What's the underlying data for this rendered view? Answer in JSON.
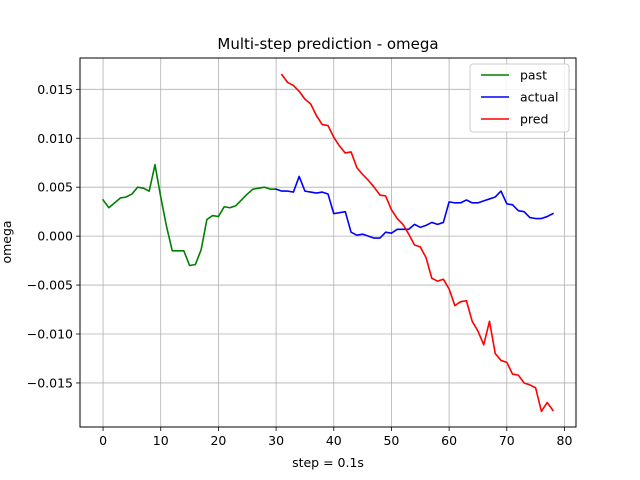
{
  "chart_data": {
    "type": "line",
    "title": "Multi-step prediction - omega",
    "xlabel": "step = 0.1s",
    "ylabel": "omega",
    "xlim": [
      -4,
      82
    ],
    "ylim": [
      -0.0195,
      0.0182
    ],
    "xticks": [
      0,
      10,
      20,
      30,
      40,
      50,
      60,
      70,
      80
    ],
    "yticks": [
      -0.015,
      -0.01,
      -0.005,
      0.0,
      0.005,
      0.01,
      0.015
    ],
    "ytick_labels": [
      "−0.015",
      "−0.010",
      "−0.005",
      "0.000",
      "0.005",
      "0.010",
      "0.015"
    ],
    "grid": true,
    "legend_position": "top-right",
    "series": [
      {
        "name": "past",
        "color": "#008000",
        "x": [
          0,
          1,
          2,
          3,
          4,
          5,
          6,
          7,
          8,
          9,
          10,
          11,
          12,
          13,
          14,
          15,
          16,
          17,
          18,
          19,
          20,
          21,
          22,
          23,
          24,
          25,
          26,
          27,
          28,
          29,
          30
        ],
        "y": [
          0.0037,
          0.0029,
          0.0034,
          0.0039,
          0.004,
          0.0043,
          0.005,
          0.0049,
          0.0046,
          0.0073,
          0.004,
          0.001,
          -0.0015,
          -0.0015,
          -0.0015,
          -0.003,
          -0.0029,
          -0.0014,
          0.0017,
          0.0021,
          0.002,
          0.003,
          0.0029,
          0.0031,
          0.0037,
          0.0043,
          0.0048,
          0.0049,
          0.005,
          0.0048,
          0.0048
        ]
      },
      {
        "name": "actual",
        "color": "#0000ff",
        "x": [
          30,
          31,
          32,
          33,
          34,
          35,
          36,
          37,
          38,
          39,
          40,
          41,
          42,
          43,
          44,
          45,
          46,
          47,
          48,
          49,
          50,
          51,
          52,
          53,
          54,
          55,
          56,
          57,
          58,
          59,
          60,
          61,
          62,
          63,
          64,
          65,
          66,
          67,
          68,
          69,
          70,
          71,
          72,
          73,
          74,
          75,
          76,
          77,
          78
        ],
        "y": [
          0.0048,
          0.0046,
          0.0046,
          0.0045,
          0.0061,
          0.0046,
          0.0045,
          0.0044,
          0.0045,
          0.0043,
          0.0023,
          0.0024,
          0.0025,
          0.0004,
          0.0001,
          0.0002,
          0.0,
          -0.0002,
          -0.0002,
          0.0004,
          0.0003,
          0.0007,
          0.0007,
          0.0007,
          0.0012,
          0.0009,
          0.0011,
          0.0014,
          0.0012,
          0.0014,
          0.0035,
          0.0034,
          0.0034,
          0.0037,
          0.0034,
          0.0034,
          0.0036,
          0.0038,
          0.004,
          0.0046,
          0.0033,
          0.0032,
          0.0026,
          0.0025,
          0.0019,
          0.0018,
          0.0018,
          0.002,
          0.0023
        ]
      },
      {
        "name": "pred",
        "color": "#ff0000",
        "x": [
          31,
          32,
          33,
          34,
          35,
          36,
          37,
          38,
          39,
          40,
          41,
          42,
          43,
          44,
          45,
          46,
          47,
          48,
          49,
          50,
          51,
          52,
          53,
          54,
          55,
          56,
          57,
          58,
          59,
          60,
          61,
          62,
          63,
          64,
          65,
          66,
          67,
          68,
          69,
          70,
          71,
          72,
          73,
          74,
          75,
          76,
          77,
          78
        ],
        "y": [
          0.0165,
          0.0157,
          0.0154,
          0.0148,
          0.014,
          0.0135,
          0.0123,
          0.0114,
          0.0113,
          0.0101,
          0.0092,
          0.0085,
          0.0086,
          0.007,
          0.0063,
          0.0057,
          0.005,
          0.0042,
          0.0041,
          0.0027,
          0.0018,
          0.0012,
          0.0002,
          -0.0009,
          -0.0011,
          -0.0022,
          -0.0043,
          -0.0046,
          -0.0044,
          -0.0054,
          -0.0071,
          -0.0067,
          -0.0066,
          -0.0087,
          -0.0097,
          -0.0111,
          -0.0087,
          -0.012,
          -0.0127,
          -0.0129,
          -0.0141,
          -0.0142,
          -0.015,
          -0.0152,
          -0.0155,
          -0.0179,
          -0.017,
          -0.0178
        ]
      }
    ]
  }
}
